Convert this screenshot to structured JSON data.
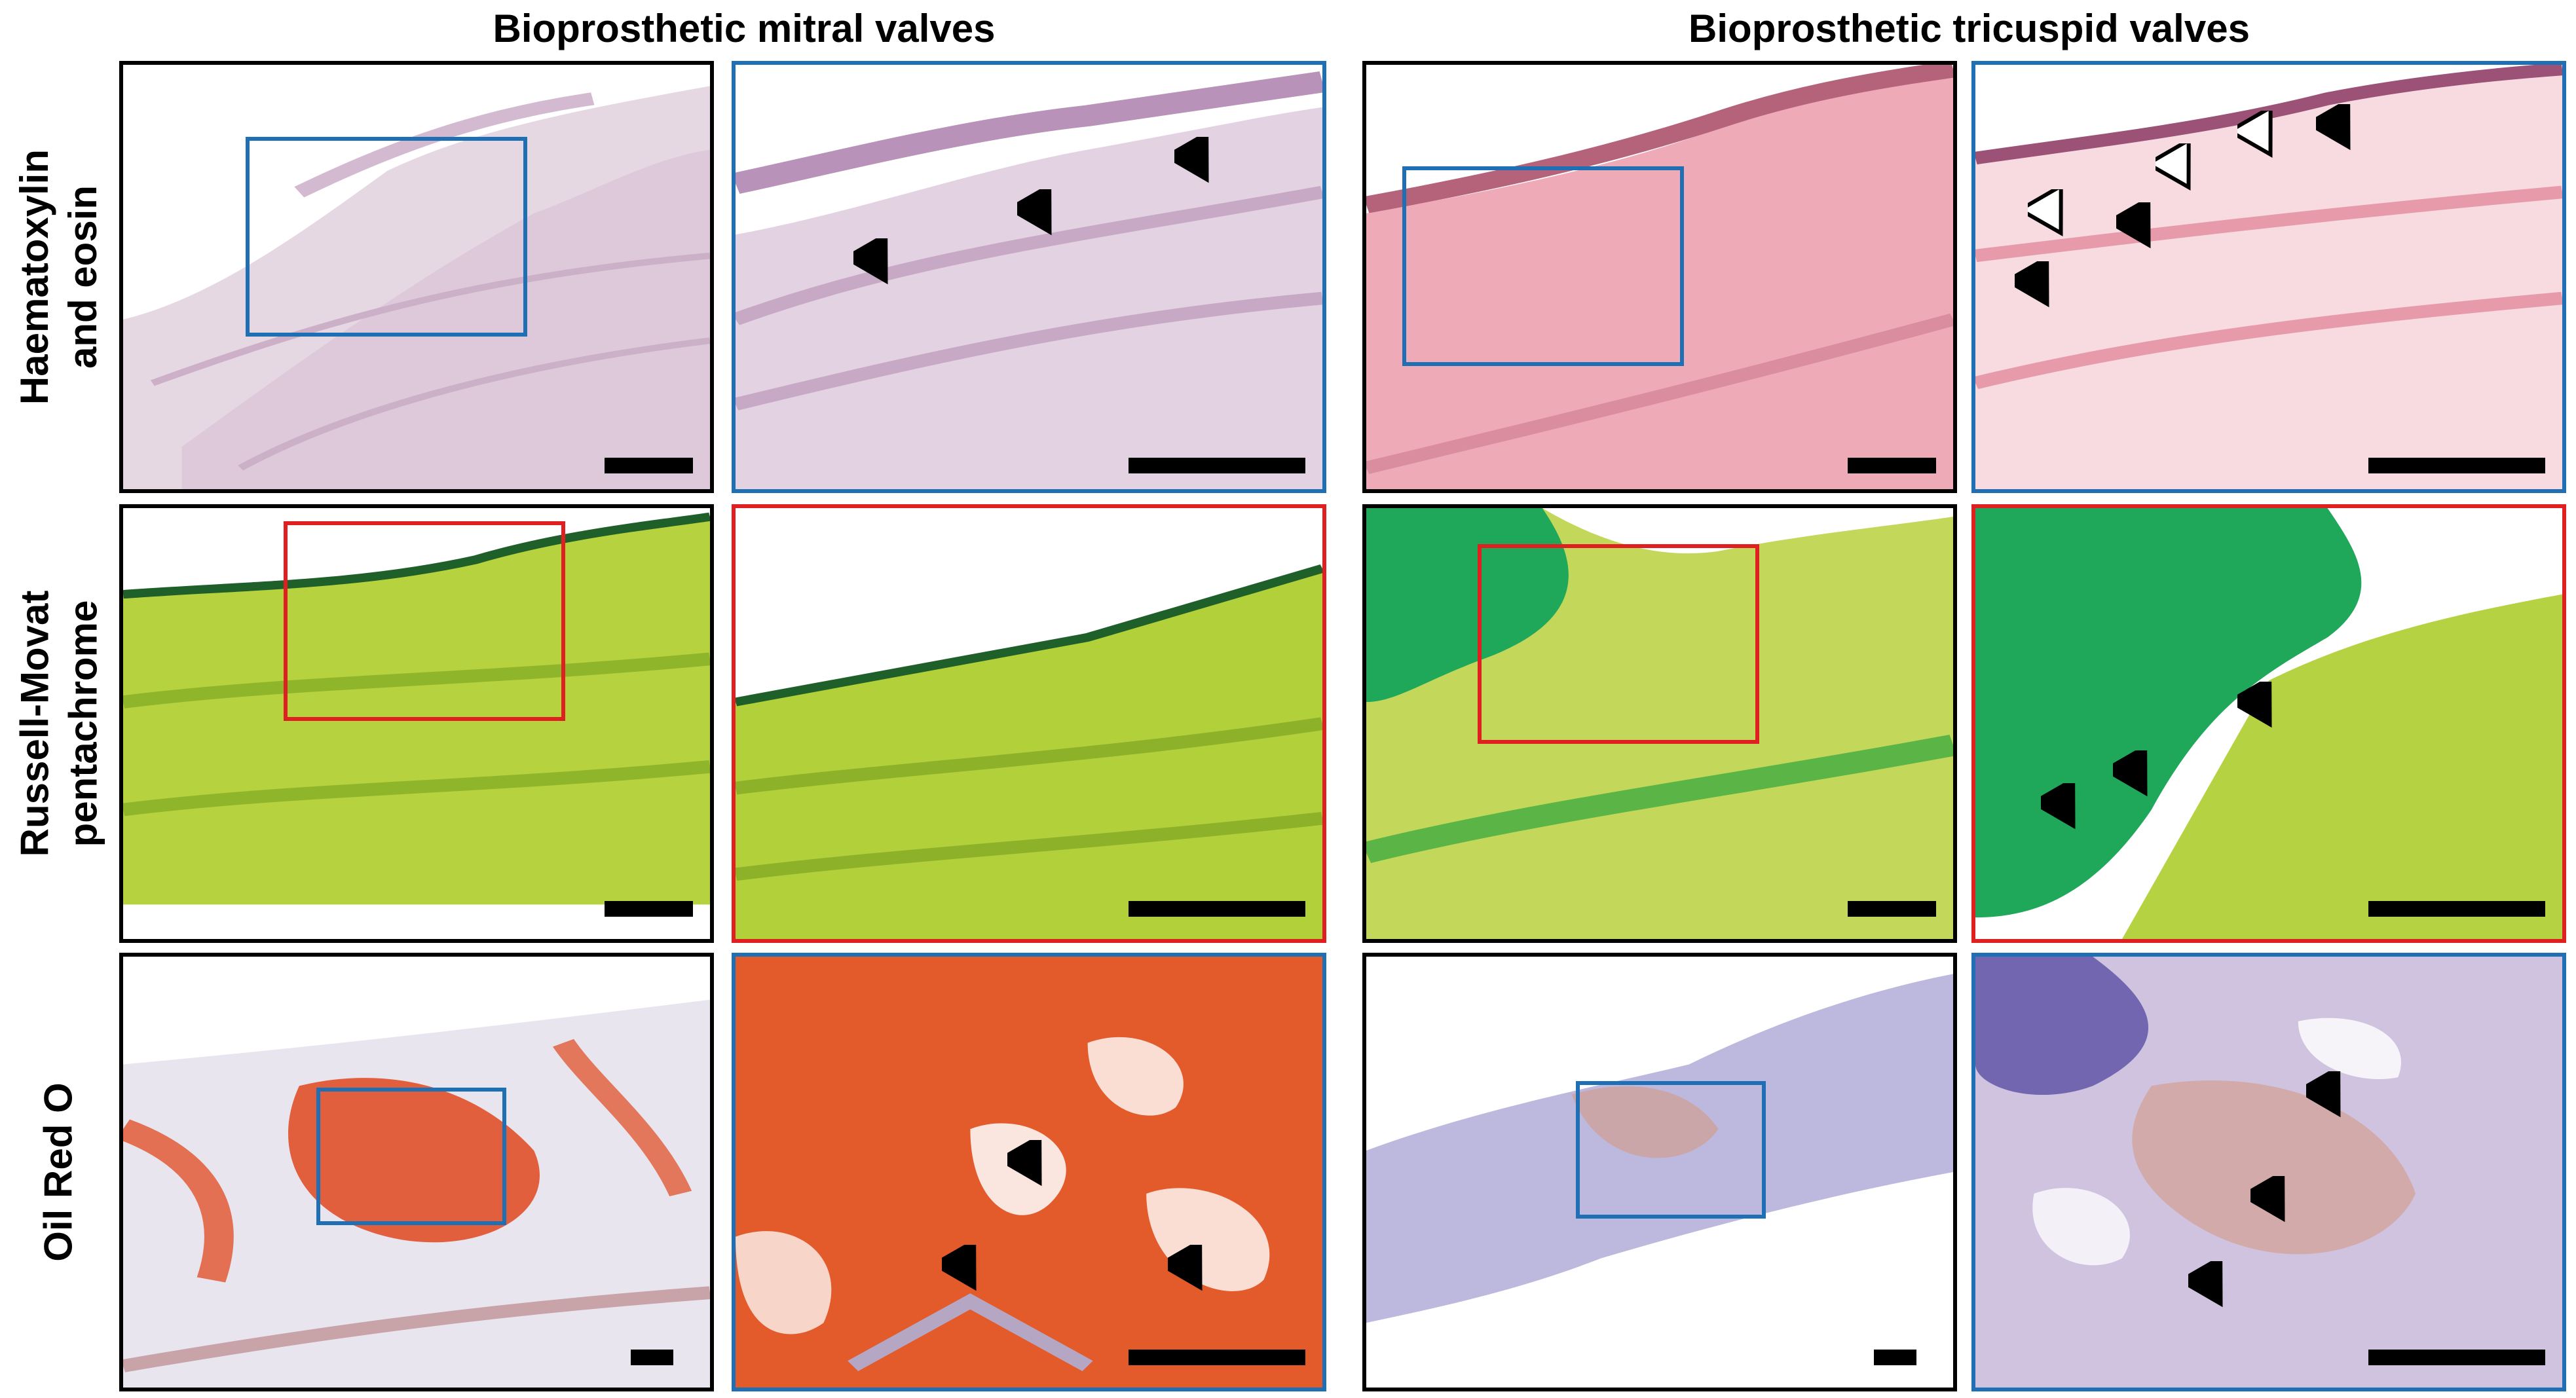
{
  "columns": {
    "mitral": "Bioprosthetic mitral valves",
    "tricuspid": "Bioprosthetic tricuspid valves"
  },
  "rows": {
    "he": [
      "Haematoxylin",
      "and eosin"
    ],
    "movat": [
      "Russell-Movat",
      "pentachrome"
    ],
    "oro": [
      "Oil Red O"
    ]
  },
  "colors": {
    "overview_border": "#000000",
    "zoom_border_blue": "#1f6fb5",
    "zoom_border_red": "#e02020",
    "he_mitral_tissue": "#d8c3d6",
    "he_tricuspid_tissue": "#eba3b2",
    "movat_tissue": "#a9cc2e",
    "movat_collagen": "#1fa85a",
    "oro_lipid": "#e0481d",
    "oro_counterstain": "#8e8ac8"
  },
  "icons": {
    "arrowhead": "solid-arrowhead-icon",
    "open_arrowhead": "open-arrowhead-icon",
    "scale_bar": "scale-bar"
  }
}
